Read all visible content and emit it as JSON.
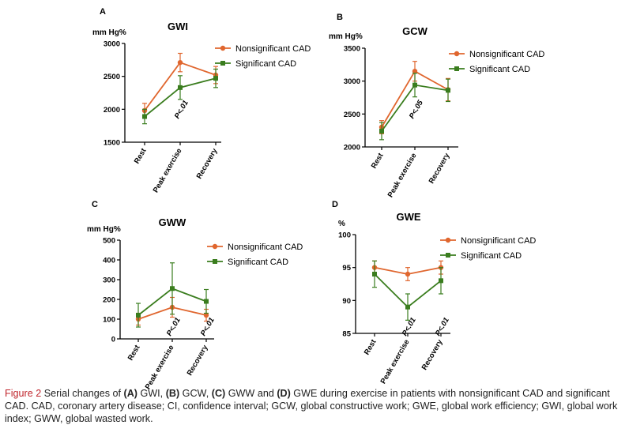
{
  "colors": {
    "nonsignificant": "#e0662e",
    "significant": "#3a7d1e",
    "caption_label": "#c0262d"
  },
  "chart_data": [
    {
      "panel": "A",
      "title": "GWI",
      "unit_label": "mm Hg%",
      "type": "line",
      "categories": [
        "Rest",
        "Peak exercise",
        "Recovery"
      ],
      "ylim": [
        1500,
        3000
      ],
      "yticks": [
        1500,
        2000,
        2500,
        3000
      ],
      "legend": "top-right",
      "series": [
        {
          "name": "Nonsignificant CAD",
          "marker": "circle",
          "values": [
            1980,
            2710,
            2520
          ],
          "err": [
            110,
            140,
            130
          ]
        },
        {
          "name": "Significant CAD",
          "marker": "square",
          "values": [
            1890,
            2330,
            2470
          ],
          "err": [
            110,
            180,
            140
          ]
        }
      ],
      "annotations": [
        {
          "text": "P<.01",
          "category_index": 1
        }
      ]
    },
    {
      "panel": "B",
      "title": "GCW",
      "unit_label": "mm Hg%",
      "type": "line",
      "categories": [
        "Rest",
        "Peak exercise",
        "Recovery"
      ],
      "ylim": [
        2000,
        3500
      ],
      "yticks": [
        2000,
        2500,
        3000,
        3500
      ],
      "legend": "top-right",
      "series": [
        {
          "name": "Nonsignificant CAD",
          "marker": "circle",
          "values": [
            2300,
            3150,
            2870
          ],
          "err": [
            100,
            150,
            170
          ]
        },
        {
          "name": "Significant CAD",
          "marker": "square",
          "values": [
            2240,
            2940,
            2860
          ],
          "err": [
            130,
            180,
            170
          ]
        }
      ],
      "annotations": [
        {
          "text": "P<.05",
          "category_index": 1
        }
      ]
    },
    {
      "panel": "C",
      "title": "GWW",
      "unit_label": "mm Hg%",
      "type": "line",
      "categories": [
        "Rest",
        "Peak exercise",
        "Recovery"
      ],
      "ylim": [
        0,
        500
      ],
      "yticks": [
        0,
        100,
        200,
        300,
        400,
        500
      ],
      "legend": "top-right",
      "series": [
        {
          "name": "Nonsignificant CAD",
          "marker": "circle",
          "values": [
            100,
            160,
            120
          ],
          "err": [
            30,
            50,
            30
          ]
        },
        {
          "name": "Significant CAD",
          "marker": "square",
          "values": [
            120,
            255,
            190
          ],
          "err": [
            60,
            130,
            60
          ]
        }
      ],
      "annotations": [
        {
          "text": "P<.01",
          "category_index": 1
        },
        {
          "text": "P<.01",
          "category_index": 2
        }
      ]
    },
    {
      "panel": "D",
      "title": "GWE",
      "unit_label": "%",
      "type": "line",
      "categories": [
        "Rest",
        "Peak exercise",
        "Recovery"
      ],
      "ylim": [
        85,
        100
      ],
      "yticks": [
        85,
        90,
        95,
        100
      ],
      "legend": "top-right",
      "series": [
        {
          "name": "Nonsignificant CAD",
          "marker": "circle",
          "values": [
            95,
            94,
            95
          ],
          "err": [
            1,
            1,
            1
          ]
        },
        {
          "name": "Significant CAD",
          "marker": "square",
          "values": [
            94,
            89,
            93
          ],
          "err": [
            2,
            2,
            2
          ]
        }
      ],
      "annotations": [
        {
          "text": "P<.01",
          "category_index": 1
        },
        {
          "text": "P<.01",
          "category_index": 2
        }
      ]
    }
  ],
  "caption": {
    "label": "Figure 2",
    "parts": [
      {
        "t": " Serial changes of ",
        "b": false
      },
      {
        "t": "(A)",
        "b": true
      },
      {
        "t": " GWI, ",
        "b": false
      },
      {
        "t": "(B)",
        "b": true
      },
      {
        "t": " GCW, ",
        "b": false
      },
      {
        "t": "(C)",
        "b": true
      },
      {
        "t": " GWW and ",
        "b": false
      },
      {
        "t": "(D)",
        "b": true
      },
      {
        "t": " GWE during exercise in patients with nonsignificant CAD and significant CAD. CAD, coronary artery disease; CI, confidence interval; GCW, global constructive work; GWE, global work efficiency; GWI, global work index; GWW, global wasted work.",
        "b": false
      }
    ]
  }
}
